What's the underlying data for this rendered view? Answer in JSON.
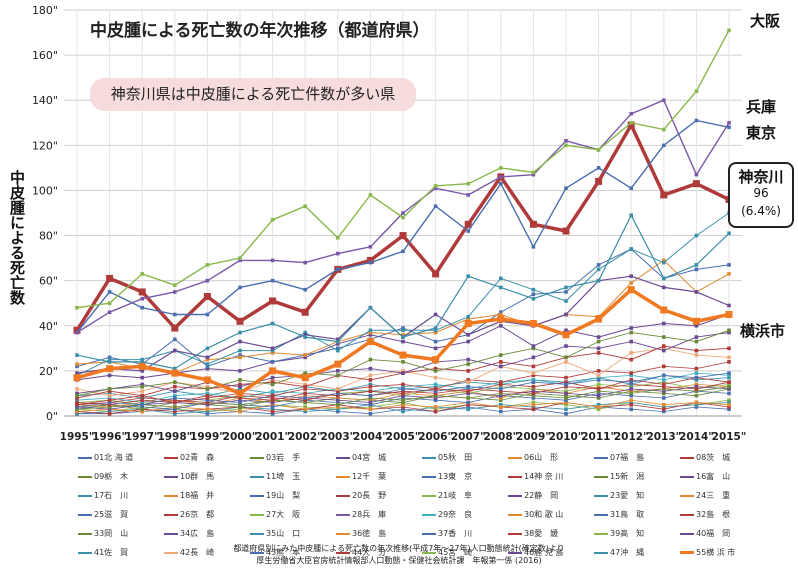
{
  "title": "中皮腫による死亡数の年次推移（都道府県）",
  "callout": "神奈川県は中皮腫による死亡件数が多い県",
  "ylabel": "中皮腫による死亡数",
  "labels": {
    "osaka": "大阪",
    "hyogo": "兵庫",
    "tokyo": "東京",
    "kanagawa": "神奈川",
    "kanagawa_value": "96",
    "kanagawa_pct": "(6.4%)",
    "yokohama": "横浜市"
  },
  "source": {
    "line1": "都道府県別にみた中皮腫による死亡数の年次推移(平成7年〜27年)人口動態統計(確定数)より",
    "line2": "厚生労働省大臣官房統計情報部人口動態・保健社会統計課　年報第一係 (2016)"
  },
  "legend": [
    "01北 海 道",
    "02青　森",
    "03岩　手",
    "04宮　城",
    "05秋　田",
    "06山　形",
    "07福　島",
    "08茨　城",
    "09栃　木",
    "10群　馬",
    "11埼　玉",
    "12千　葉",
    "13東　京",
    "14神 奈 川",
    "15新　潟",
    "16富　山",
    "17石　川",
    "18福　井",
    "19山　梨",
    "20長　野",
    "21岐　阜",
    "22静　岡",
    "23愛　知",
    "24三　重",
    "25滋　賀",
    "26京　都",
    "27大　阪",
    "28兵　庫",
    "29奈　良",
    "30和 歌 山",
    "31鳥　取",
    "32島　根",
    "33岡　山",
    "34広　島",
    "35山　口",
    "36徳　島",
    "37香　川",
    "38愛　媛",
    "39高　知",
    "40福　岡",
    "41佐　賀",
    "42長　崎",
    "43熊　本",
    "44大　分",
    "45宮　崎",
    "46鹿 児 島",
    "47沖　縄",
    "55横 浜 市"
  ],
  "legend_colors": [
    "#4a6fb0",
    "#b03a3a",
    "#6a8a3a",
    "#6a4a90",
    "#3a90a8",
    "#e08a30",
    "#4a6fb0",
    "#b03a3a",
    "#6a8a3a",
    "#6a4a90",
    "#3a90a8",
    "#e08a30",
    "#4a6fb0",
    "#b03a3a",
    "#6a8a3a",
    "#6a4a90",
    "#3a90a8",
    "#e08a30",
    "#4a6fb0",
    "#b03a3a",
    "#8ab84a",
    "#6a4a90",
    "#3a90a8",
    "#e08a30",
    "#4a6fb0",
    "#b03a3a",
    "#8ab84a",
    "#7a5aa8",
    "#3ab0c0",
    "#e08a30",
    "#4a6fb0",
    "#b03a3a",
    "#6a8a3a",
    "#6a4a90",
    "#3a90a8",
    "#e08a30",
    "#4a6fb0",
    "#b03a3a",
    "#8ab84a",
    "#6a4a90",
    "#3a90a8",
    "#f0a878",
    "#4a6fb0",
    "#b03a3a",
    "#8ab84a",
    "#6a4a90",
    "#3a90a8",
    "#f07820"
  ],
  "chart_data": {
    "type": "line",
    "categories": [
      "1995\"",
      "1996\"",
      "1997\"",
      "1998\"",
      "1999\"",
      "2000\"",
      "2001\"",
      "2002\"",
      "2003\"",
      "2004\"",
      "2005\"",
      "2006\"",
      "2007\"",
      "2008\"",
      "2009\"",
      "2010\"",
      "2011\"",
      "2012\"",
      "2013\"",
      "2014\"",
      "2015\""
    ],
    "ylim": [
      0,
      180
    ],
    "yticks": [
      "0\"",
      "20\"",
      "40\"",
      "60\"",
      "80\"",
      "100\"",
      "120\"",
      "140\"",
      "160\"",
      "180\""
    ],
    "grid": true,
    "series": [
      {
        "name": "27大　阪",
        "color": "#8ab84a",
        "width": 1.4,
        "values": [
          48,
          50,
          63,
          58,
          67,
          70,
          87,
          93,
          79,
          98,
          88,
          102,
          103,
          110,
          108,
          120,
          118,
          130,
          127,
          144,
          171
        ]
      },
      {
        "name": "28兵　庫",
        "color": "#7a5aa8",
        "width": 1.4,
        "values": [
          37,
          46,
          52,
          55,
          60,
          69,
          69,
          68,
          72,
          75,
          90,
          101,
          98,
          106,
          107,
          122,
          118,
          134,
          140,
          107,
          130
        ]
      },
      {
        "name": "13東　京",
        "color": "#4a6fb0",
        "width": 1.4,
        "values": [
          37,
          55,
          48,
          45,
          45,
          57,
          60,
          56,
          65,
          68,
          73,
          93,
          82,
          103,
          75,
          101,
          110,
          101,
          120,
          131,
          128
        ]
      },
      {
        "name": "14神 奈 川",
        "color": "#b03a3a",
        "width": 3.5,
        "values": [
          38,
          61,
          55,
          39,
          53,
          42,
          51,
          46,
          65,
          69,
          80,
          63,
          85,
          106,
          85,
          82,
          104,
          129,
          98,
          103,
          96
        ]
      },
      {
        "name": "55横 浜 市",
        "color": "#f07820",
        "width": 3.5,
        "values": [
          17,
          21,
          22,
          19,
          16,
          10,
          20,
          17,
          23,
          33,
          27,
          25,
          41,
          43,
          41,
          36,
          43,
          56,
          47,
          42,
          45
        ]
      },
      {
        "name": "23愛　知",
        "color": "#3a90a8",
        "width": 1.2,
        "values": [
          27,
          24,
          24,
          21,
          30,
          37,
          41,
          35,
          33,
          48,
          35,
          39,
          62,
          57,
          52,
          57,
          60,
          89,
          61,
          67,
          81
        ]
      },
      {
        "name": "40福　岡",
        "color": "#6a4a90",
        "width": 1.2,
        "values": [
          19,
          21,
          20,
          29,
          26,
          33,
          30,
          36,
          34,
          48,
          35,
          45,
          36,
          42,
          40,
          45,
          60,
          62,
          57,
          55,
          49
        ]
      },
      {
        "name": "11埼　玉",
        "color": "#3a90a8",
        "width": 1.0,
        "values": [
          18,
          25,
          25,
          29,
          23,
          29,
          29,
          37,
          29,
          38,
          38,
          38,
          44,
          61,
          56,
          51,
          65,
          74,
          68,
          80,
          90
        ]
      },
      {
        "name": "12千　葉",
        "color": "#e08a30",
        "width": 1.0,
        "values": [
          23,
          24,
          21,
          19,
          25,
          26,
          28,
          27,
          33,
          37,
          36,
          37,
          43,
          45,
          40,
          45,
          44,
          59,
          69,
          55,
          63
        ]
      },
      {
        "name": "01北 海 道",
        "color": "#4a6fb0",
        "width": 1.0,
        "values": [
          22,
          26,
          23,
          34,
          22,
          27,
          24,
          27,
          30,
          34,
          39,
          33,
          36,
          46,
          54,
          55,
          67,
          74,
          61,
          65,
          67
        ]
      },
      {
        "name": "34広　島",
        "color": "#6a4a90",
        "width": 1.0,
        "values": [
          16,
          18,
          17,
          19,
          21,
          20,
          24,
          26,
          32,
          36,
          33,
          30,
          33,
          40,
          31,
          38,
          35,
          39,
          41,
          40,
          45
        ]
      },
      {
        "name": "33岡　山",
        "color": "#6a8a3a",
        "width": 0.9,
        "values": [
          9,
          12,
          13,
          15,
          12,
          16,
          14,
          19,
          18,
          25,
          24,
          20,
          23,
          27,
          30,
          26,
          33,
          37,
          35,
          33,
          38
        ]
      },
      {
        "name": "22静　岡",
        "color": "#6a4a90",
        "width": 0.9,
        "values": [
          10,
          12,
          14,
          11,
          15,
          13,
          17,
          18,
          20,
          21,
          19,
          24,
          25,
          22,
          26,
          31,
          30,
          33,
          29,
          35,
          37
        ]
      },
      {
        "name": "26京　都",
        "color": "#b03a3a",
        "width": 0.9,
        "values": [
          8,
          11,
          9,
          13,
          12,
          14,
          15,
          13,
          18,
          16,
          19,
          21,
          20,
          24,
          22,
          26,
          28,
          25,
          31,
          29,
          30
        ]
      },
      {
        "name": "42長　崎",
        "color": "#f0a878",
        "width": 0.9,
        "values": [
          12,
          9,
          11,
          15,
          13,
          10,
          16,
          14,
          12,
          18,
          20,
          17,
          15,
          22,
          19,
          24,
          18,
          28,
          30,
          27,
          26
        ]
      },
      {
        "name": "08茨　城",
        "color": "#b03a3a",
        "width": 0.8,
        "values": [
          5,
          7,
          9,
          6,
          8,
          10,
          9,
          12,
          11,
          13,
          14,
          12,
          16,
          15,
          18,
          17,
          20,
          19,
          22,
          21,
          24
        ]
      },
      {
        "name": "07福　島",
        "color": "#4a6fb0",
        "width": 0.8,
        "values": [
          4,
          6,
          5,
          8,
          7,
          6,
          9,
          8,
          10,
          9,
          12,
          11,
          13,
          12,
          15,
          14,
          16,
          15,
          18,
          17,
          19
        ]
      },
      {
        "name": "20長　野",
        "color": "#b03a3a",
        "width": 0.8,
        "values": [
          6,
          5,
          7,
          6,
          9,
          8,
          7,
          10,
          9,
          11,
          10,
          12,
          11,
          14,
          13,
          15,
          12,
          16,
          14,
          17,
          15
        ]
      },
      {
        "name": "29奈　良",
        "color": "#3ab0c0",
        "width": 0.8,
        "values": [
          7,
          8,
          6,
          9,
          10,
          8,
          11,
          10,
          12,
          11,
          13,
          14,
          12,
          15,
          16,
          14,
          17,
          18,
          16,
          19,
          18
        ]
      },
      {
        "name": "35山　口",
        "color": "#3a90a8",
        "width": 0.8,
        "values": [
          9,
          10,
          8,
          11,
          9,
          12,
          10,
          13,
          11,
          14,
          12,
          13,
          15,
          14,
          16,
          15,
          17,
          14,
          18,
          16,
          17
        ]
      },
      {
        "name": "38愛　媛",
        "color": "#b03a3a",
        "width": 0.8,
        "values": [
          5,
          6,
          8,
          7,
          6,
          9,
          8,
          7,
          10,
          9,
          11,
          10,
          12,
          11,
          10,
          13,
          12,
          14,
          13,
          12,
          15
        ]
      },
      {
        "name": "09栃　木",
        "color": "#6a8a3a",
        "width": 0.8,
        "values": [
          3,
          4,
          5,
          4,
          6,
          5,
          7,
          6,
          5,
          8,
          7,
          9,
          8,
          10,
          9,
          8,
          11,
          10,
          12,
          11,
          13
        ]
      },
      {
        "name": "10群　馬",
        "color": "#6a4a90",
        "width": 0.8,
        "values": [
          4,
          3,
          5,
          6,
          5,
          7,
          6,
          8,
          7,
          6,
          9,
          8,
          10,
          9,
          11,
          10,
          9,
          12,
          11,
          13,
          12
        ]
      },
      {
        "name": "21岐　阜",
        "color": "#8ab84a",
        "width": 0.8,
        "values": [
          6,
          7,
          5,
          8,
          7,
          9,
          8,
          7,
          10,
          11,
          9,
          12,
          10,
          13,
          12,
          11,
          14,
          13,
          15,
          12,
          14
        ]
      },
      {
        "name": "24三　重",
        "color": "#e08a30",
        "width": 0.8,
        "values": [
          5,
          4,
          6,
          7,
          5,
          8,
          6,
          9,
          8,
          7,
          10,
          9,
          11,
          8,
          12,
          10,
          13,
          11,
          12,
          14,
          13
        ]
      },
      {
        "name": "15新　潟",
        "color": "#6a8a3a",
        "width": 0.8,
        "values": [
          4,
          5,
          3,
          6,
          5,
          4,
          7,
          6,
          8,
          7,
          6,
          9,
          8,
          7,
          10,
          9,
          8,
          11,
          10,
          9,
          12
        ]
      },
      {
        "name": "43熊　本",
        "color": "#4a6fb0",
        "width": 0.8,
        "values": [
          3,
          5,
          4,
          3,
          6,
          5,
          4,
          7,
          6,
          5,
          8,
          7,
          6,
          9,
          8,
          7,
          10,
          9,
          8,
          11,
          10
        ]
      },
      {
        "name": "36徳　島",
        "color": "#e08a30",
        "width": 0.8,
        "values": [
          2,
          3,
          2,
          4,
          3,
          2,
          5,
          3,
          4,
          3,
          5,
          4,
          6,
          4,
          5,
          6,
          4,
          7,
          5,
          6,
          5
        ]
      },
      {
        "name": "02青　森",
        "color": "#b03a3a",
        "width": 0.8,
        "values": [
          2,
          1,
          3,
          2,
          3,
          4,
          2,
          3,
          5,
          3,
          4,
          2,
          5,
          4,
          3,
          6,
          4,
          5,
          3,
          6,
          4
        ]
      },
      {
        "name": "47沖　縄",
        "color": "#3a90a8",
        "width": 0.8,
        "values": [
          1,
          2,
          3,
          1,
          2,
          4,
          3,
          2,
          3,
          5,
          2,
          4,
          3,
          5,
          4,
          3,
          5,
          6,
          4,
          5,
          6
        ]
      },
      {
        "name": "39高　知",
        "color": "#8ab84a",
        "width": 0.8,
        "values": [
          3,
          2,
          4,
          3,
          2,
          3,
          5,
          4,
          3,
          4,
          6,
          3,
          5,
          4,
          6,
          5,
          3,
          6,
          4,
          5,
          7
        ]
      },
      {
        "name": "31鳥　取",
        "color": "#4a6fb0",
        "width": 0.8,
        "values": [
          1,
          1,
          2,
          3,
          1,
          2,
          1,
          3,
          2,
          1,
          3,
          2,
          4,
          2,
          3,
          1,
          4,
          3,
          2,
          4,
          3
        ]
      }
    ]
  }
}
